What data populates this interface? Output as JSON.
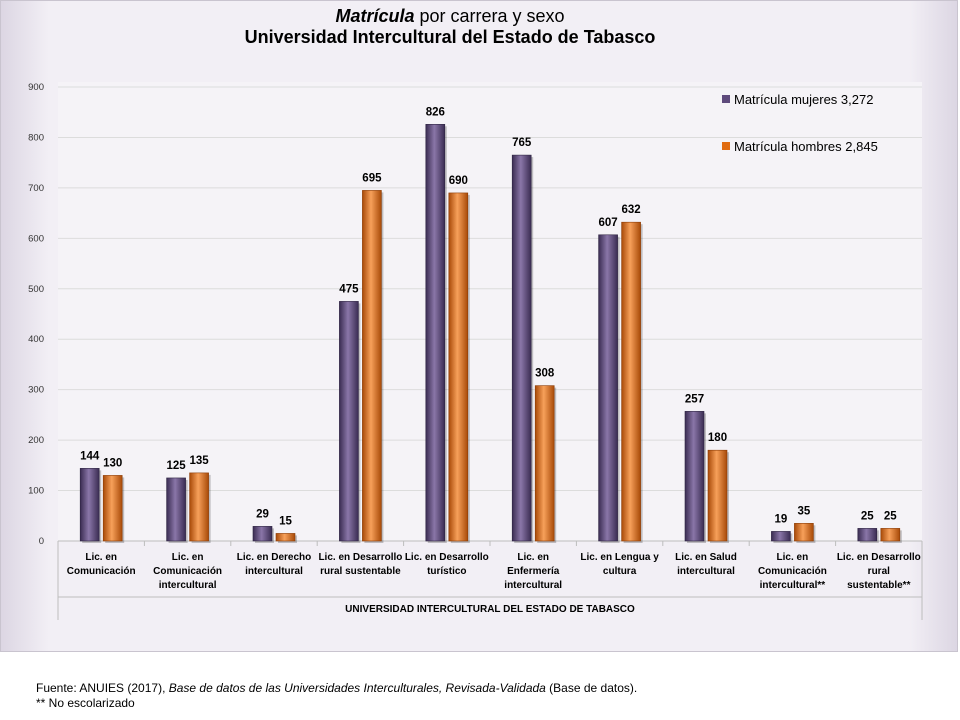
{
  "title": {
    "line1_italic": "Matrícula",
    "line1_rest": " por carrera y sexo",
    "line2": "Universidad Intercultural del Estado de Tabasco"
  },
  "chart_data": {
    "type": "bar",
    "categories": [
      [
        "Lic. en",
        "Comunicación"
      ],
      [
        "Lic. en",
        "Comunicación",
        "intercultural"
      ],
      [
        "Lic. en Derecho",
        "intercultural"
      ],
      [
        "Lic. en Desarrollo",
        "rural sustentable"
      ],
      [
        "Lic. en Desarrollo",
        "turístico"
      ],
      [
        "Lic. en",
        "Enfermería",
        "intercultural"
      ],
      [
        "Lic. en Lengua y",
        "cultura"
      ],
      [
        "Lic. en Salud",
        "intercultural"
      ],
      [
        "Lic. en",
        "Comunicación",
        "intercultural**"
      ],
      [
        "Lic. en Desarrollo",
        "rural",
        "sustentable**"
      ]
    ],
    "series": [
      {
        "name": "Matrícula mujeres  3,272",
        "color": "#5e4a7c",
        "values": [
          144,
          125,
          29,
          475,
          826,
          765,
          607,
          257,
          19,
          25
        ]
      },
      {
        "name": "Matrícula hombres  2,845",
        "color": "#e06b10",
        "values": [
          130,
          135,
          15,
          695,
          690,
          308,
          632,
          180,
          35,
          25
        ]
      }
    ],
    "yticks": [
      0,
      100,
      200,
      300,
      400,
      500,
      600,
      700,
      800,
      900
    ],
    "ylim": [
      0,
      900
    ],
    "xlabel": "UNIVERSIDAD INTERCULTURAL DEL ESTADO DE TABASCO",
    "ylabel": "",
    "grid": true,
    "legend_position": "top-right"
  },
  "source": {
    "prefix": "Fuente: ANUIES (2017), ",
    "italic": "Base de datos de las Universidades  Interculturales, Revisada-Validada",
    "suffix": "  (Base de datos).",
    "note": "** No escolarizado"
  }
}
